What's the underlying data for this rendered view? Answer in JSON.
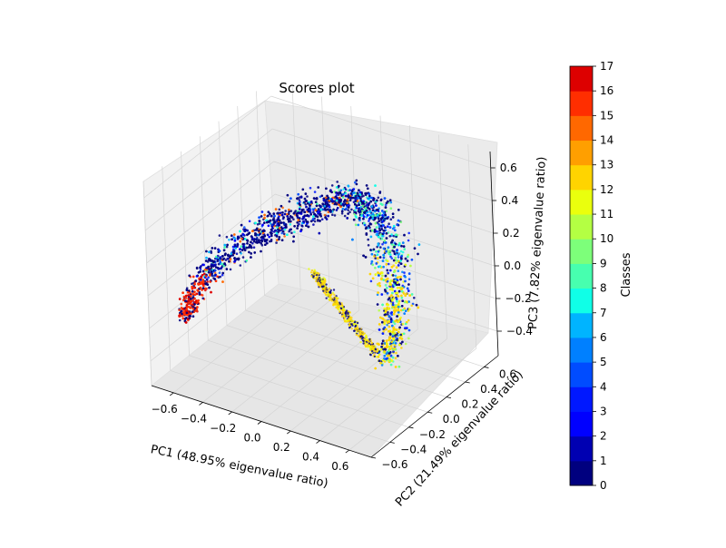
{
  "chart_data": {
    "type": "scatter",
    "title": "Scores plot",
    "xlabel": "PC1 (48.95% eigenvalue ratio)",
    "ylabel": "PC2 (21.49% eigenvalue ratio)",
    "zlabel": "PC3 (7.82% eigenvalue ratio)",
    "projection": "3d",
    "grid": true,
    "xlim": [
      -0.75,
      0.75
    ],
    "ylim": [
      -0.6,
      0.75
    ],
    "zlim": [
      -0.55,
      0.7
    ],
    "x_ticks": [
      "−0.6",
      "−0.4",
      "−0.2",
      "0.0",
      "0.2",
      "0.4",
      "0.6"
    ],
    "y_ticks": [
      "−0.6",
      "−0.4",
      "−0.2",
      "0.0",
      "0.2",
      "0.4",
      "0.6"
    ],
    "z_ticks": [
      "−0.4",
      "−0.2",
      "0.0",
      "0.2",
      "0.4",
      "0.6"
    ],
    "x_tick_values": [
      -0.6,
      -0.4,
      -0.2,
      0.0,
      0.2,
      0.4,
      0.6
    ],
    "y_tick_values": [
      -0.6,
      -0.4,
      -0.2,
      0.0,
      0.2,
      0.4,
      0.6
    ],
    "z_tick_values": [
      -0.4,
      -0.2,
      0.0,
      0.2,
      0.4,
      0.6
    ],
    "colorbar": {
      "label": "Classes",
      "range": [
        0,
        17
      ],
      "ticks": [
        "0",
        "1",
        "2",
        "3",
        "4",
        "5",
        "6",
        "7",
        "8",
        "9",
        "10",
        "11",
        "12",
        "13",
        "14",
        "15",
        "16",
        "17"
      ],
      "colors": [
        "#00007f",
        "#0000b2",
        "#0000ff",
        "#0018ff",
        "#004cff",
        "#0080ff",
        "#00b4ff",
        "#10ffe7",
        "#47ffaf",
        "#7dff7a",
        "#b4ff43",
        "#eaff0d",
        "#ffd400",
        "#ff9f00",
        "#ff6800",
        "#ff2e00",
        "#dd0000",
        "#800000"
      ],
      "colormap": "jet"
    },
    "series_description_classes": [
      0,
      1,
      2,
      3,
      4,
      5,
      6,
      7,
      8,
      9,
      10,
      11,
      12,
      13,
      14,
      15,
      16
    ]
  }
}
